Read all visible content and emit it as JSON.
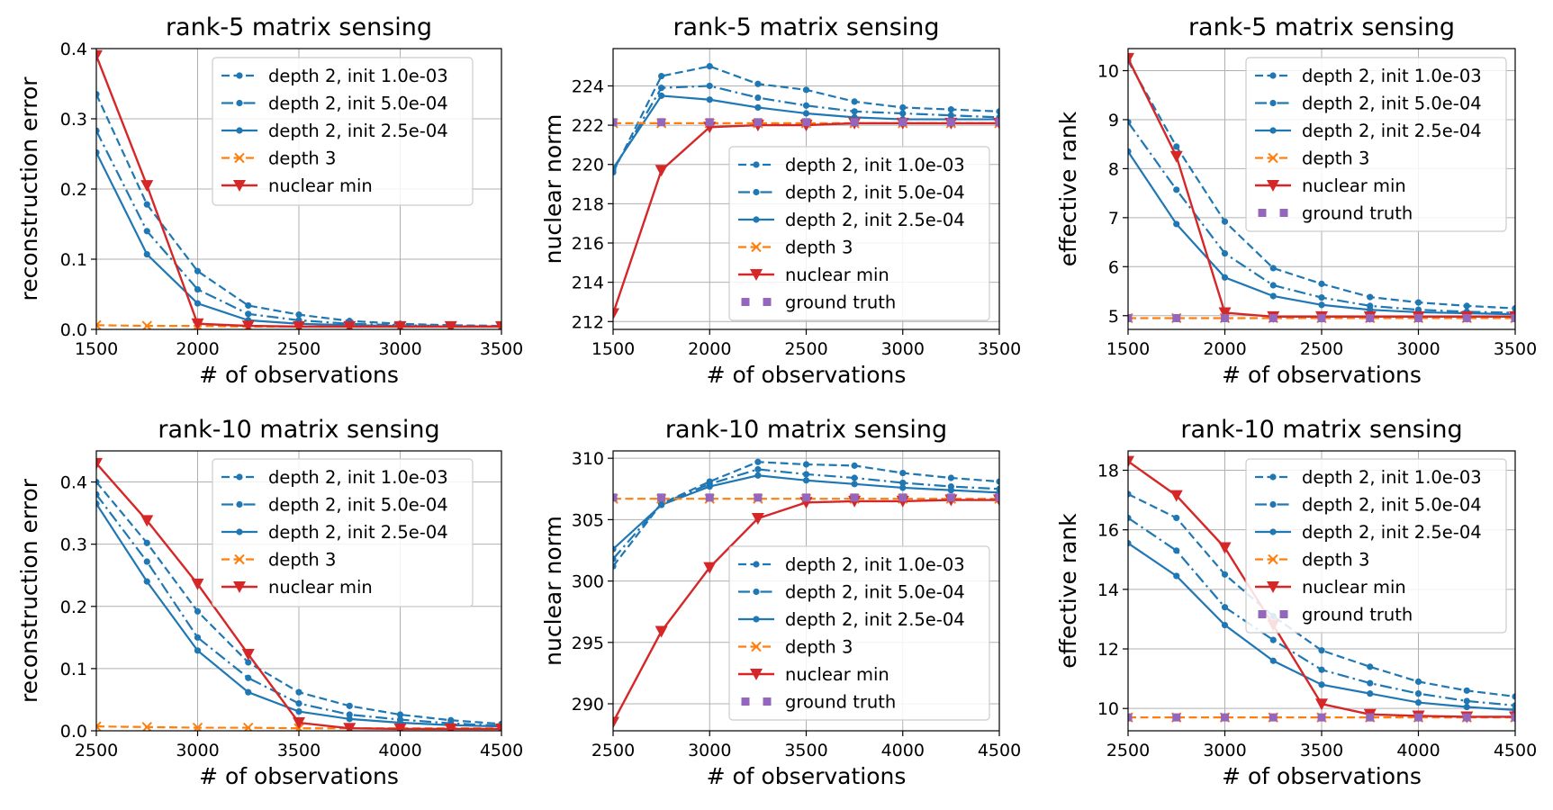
{
  "figure": {
    "colors": {
      "blue": "#1f77b4",
      "orange": "#ff7f0e",
      "red": "#d62728",
      "purple": "#9467bd"
    }
  },
  "chart_data": [
    {
      "type": "line",
      "title": "rank-5 matrix sensing",
      "xlabel": "# of observations",
      "ylabel": "reconstruction error",
      "xlim": [
        1500,
        3500
      ],
      "ylim": [
        0,
        0.4
      ],
      "xticks": [
        1500,
        2000,
        2500,
        3000,
        3500
      ],
      "xtick_labels": [
        "1500",
        "2000",
        "2500",
        "3000",
        "3500"
      ],
      "yticks": [
        0,
        0.1,
        0.2,
        0.3,
        0.4
      ],
      "ytick_labels": [
        "0.0",
        "0.1",
        "0.2",
        "0.3",
        "0.4"
      ],
      "legend_position": "top-right",
      "x": [
        1500,
        1750,
        2000,
        2250,
        2500,
        2750,
        3000,
        3250,
        3500
      ],
      "series": [
        {
          "name": "depth 2, init 1.0e-03",
          "style": "dashed-dot-marker",
          "color": "blue",
          "values": [
            0.335,
            0.178,
            0.083,
            0.034,
            0.021,
            0.012,
            0.008,
            0.006,
            0.005
          ]
        },
        {
          "name": "depth 2, init 5.0e-04",
          "style": "dashdot-dot-marker",
          "color": "blue",
          "values": [
            0.283,
            0.14,
            0.057,
            0.022,
            0.013,
            0.008,
            0.006,
            0.005,
            0.004
          ]
        },
        {
          "name": "depth 2, init 2.5e-04",
          "style": "solid-dot-marker",
          "color": "blue",
          "values": [
            0.252,
            0.107,
            0.037,
            0.013,
            0.008,
            0.006,
            0.005,
            0.004,
            0.004
          ]
        },
        {
          "name": "depth 3",
          "style": "dashed-x-marker",
          "color": "orange",
          "values": [
            0.006,
            0.005,
            0.005,
            0.004,
            0.004,
            0.004,
            0.004,
            0.004,
            0.004
          ]
        },
        {
          "name": "nuclear min",
          "style": "solid-triangle-marker",
          "color": "red",
          "values": [
            0.39,
            0.205,
            0.008,
            0.005,
            0.004,
            0.004,
            0.004,
            0.004,
            0.004
          ]
        }
      ]
    },
    {
      "type": "line",
      "title": "rank-5 matrix sensing",
      "xlabel": "# of observations",
      "ylabel": "nuclear norm",
      "xlim": [
        1500,
        3500
      ],
      "ylim": [
        211.6,
        225.9
      ],
      "xticks": [
        1500,
        2000,
        2500,
        3000,
        3500
      ],
      "xtick_labels": [
        "1500",
        "2000",
        "2500",
        "3000",
        "3500"
      ],
      "yticks": [
        212,
        214,
        216,
        218,
        220,
        222,
        224
      ],
      "ytick_labels": [
        "212",
        "214",
        "216",
        "218",
        "220",
        "222",
        "224"
      ],
      "legend_position": "center-right",
      "x": [
        1500,
        1750,
        2000,
        2250,
        2500,
        2750,
        3000,
        3250,
        3500
      ],
      "series": [
        {
          "name": "depth 2, init 1.0e-03",
          "style": "dashed-dot-marker",
          "color": "blue",
          "values": [
            219.6,
            224.5,
            225.0,
            224.1,
            223.8,
            223.2,
            222.9,
            222.8,
            222.7
          ]
        },
        {
          "name": "depth 2, init 5.0e-04",
          "style": "dashdot-dot-marker",
          "color": "blue",
          "values": [
            219.7,
            223.9,
            224.0,
            223.4,
            223.0,
            222.7,
            222.6,
            222.5,
            222.4
          ]
        },
        {
          "name": "depth 2, init 2.5e-04",
          "style": "solid-dot-marker",
          "color": "blue",
          "values": [
            219.8,
            223.5,
            223.3,
            222.9,
            222.6,
            222.4,
            222.3,
            222.3,
            222.3
          ]
        },
        {
          "name": "depth 3",
          "style": "dashed-x-marker",
          "color": "orange",
          "values": [
            222.1,
            222.1,
            222.1,
            222.1,
            222.1,
            222.1,
            222.1,
            222.1,
            222.1
          ]
        },
        {
          "name": "nuclear min",
          "style": "solid-triangle-marker",
          "color": "red",
          "values": [
            212.4,
            219.7,
            221.9,
            222.0,
            222.0,
            222.1,
            222.1,
            222.1,
            222.1
          ]
        },
        {
          "name": "ground truth",
          "style": "dotted-square-marker",
          "color": "purple",
          "values": [
            222.15,
            222.15,
            222.15,
            222.15,
            222.15,
            222.15,
            222.15,
            222.15,
            222.15
          ]
        }
      ]
    },
    {
      "type": "line",
      "title": "rank-5 matrix sensing",
      "xlabel": "# of observations",
      "ylabel": "effective rank",
      "xlim": [
        1500,
        3500
      ],
      "ylim": [
        4.72,
        10.45
      ],
      "xticks": [
        1500,
        2000,
        2500,
        3000,
        3500
      ],
      "xtick_labels": [
        "1500",
        "2000",
        "2500",
        "3000",
        "3500"
      ],
      "yticks": [
        5,
        6,
        7,
        8,
        9,
        10
      ],
      "ytick_labels": [
        "5",
        "6",
        "7",
        "8",
        "9",
        "10"
      ],
      "legend_position": "top-right",
      "x": [
        1500,
        1750,
        2000,
        2250,
        2500,
        2750,
        3000,
        3250,
        3500
      ],
      "series": [
        {
          "name": "depth 2, init 1.0e-03",
          "style": "dashed-dot-marker",
          "color": "blue",
          "values": [
            10.2,
            8.45,
            6.92,
            5.97,
            5.65,
            5.38,
            5.27,
            5.2,
            5.15
          ]
        },
        {
          "name": "depth 2, init 5.0e-04",
          "style": "dashdot-dot-marker",
          "color": "blue",
          "values": [
            8.95,
            7.57,
            6.27,
            5.62,
            5.37,
            5.2,
            5.12,
            5.08,
            5.06
          ]
        },
        {
          "name": "depth 2, init 2.5e-04",
          "style": "solid-dot-marker",
          "color": "blue",
          "values": [
            8.35,
            6.87,
            5.78,
            5.4,
            5.22,
            5.12,
            5.07,
            5.05,
            5.03
          ]
        },
        {
          "name": "depth 3",
          "style": "dashed-x-marker",
          "color": "orange",
          "values": [
            4.95,
            4.95,
            4.95,
            4.95,
            4.95,
            4.95,
            4.95,
            4.95,
            4.95
          ]
        },
        {
          "name": "nuclear min",
          "style": "solid-triangle-marker",
          "color": "red",
          "values": [
            10.25,
            8.25,
            5.06,
            4.98,
            4.98,
            4.98,
            4.98,
            4.98,
            4.98
          ]
        },
        {
          "name": "ground truth",
          "style": "dotted-square-marker",
          "color": "purple",
          "values": [
            4.95,
            4.95,
            4.95,
            4.95,
            4.95,
            4.95,
            4.95,
            4.95,
            4.95
          ]
        }
      ]
    },
    {
      "type": "line",
      "title": "rank-10 matrix sensing",
      "xlabel": "# of observations",
      "ylabel": "reconstruction error",
      "xlim": [
        2500,
        4500
      ],
      "ylim": [
        0,
        0.45
      ],
      "xticks": [
        2500,
        3000,
        3500,
        4000,
        4500
      ],
      "xtick_labels": [
        "2500",
        "3000",
        "3500",
        "4000",
        "4500"
      ],
      "yticks": [
        0,
        0.1,
        0.2,
        0.3,
        0.4
      ],
      "ytick_labels": [
        "0.0",
        "0.1",
        "0.2",
        "0.3",
        "0.4"
      ],
      "legend_position": "top-right",
      "x": [
        2500,
        2750,
        3000,
        3250,
        3500,
        3750,
        4000,
        4250,
        4500
      ],
      "series": [
        {
          "name": "depth 2, init 1.0e-03",
          "style": "dashed-dot-marker",
          "color": "blue",
          "values": [
            0.4,
            0.302,
            0.192,
            0.11,
            0.062,
            0.04,
            0.026,
            0.017,
            0.011
          ]
        },
        {
          "name": "depth 2, init 5.0e-04",
          "style": "dashdot-dot-marker",
          "color": "blue",
          "values": [
            0.38,
            0.272,
            0.15,
            0.085,
            0.044,
            0.026,
            0.018,
            0.012,
            0.008
          ]
        },
        {
          "name": "depth 2, init 2.5e-04",
          "style": "solid-dot-marker",
          "color": "blue",
          "values": [
            0.365,
            0.24,
            0.129,
            0.062,
            0.031,
            0.019,
            0.013,
            0.009,
            0.007
          ]
        },
        {
          "name": "depth 3",
          "style": "dashed-x-marker",
          "color": "orange",
          "values": [
            0.007,
            0.006,
            0.005,
            0.005,
            0.004,
            0.004,
            0.004,
            0.004,
            0.004
          ]
        },
        {
          "name": "nuclear min",
          "style": "solid-triangle-marker",
          "color": "red",
          "values": [
            0.43,
            0.338,
            0.236,
            0.123,
            0.013,
            0.004,
            0.003,
            0.003,
            0.003
          ]
        }
      ]
    },
    {
      "type": "line",
      "title": "rank-10 matrix sensing",
      "xlabel": "# of observations",
      "ylabel": "nuclear norm",
      "xlim": [
        2500,
        4500
      ],
      "ylim": [
        287.8,
        310.6
      ],
      "xticks": [
        2500,
        3000,
        3500,
        4000,
        4500
      ],
      "xtick_labels": [
        "2500",
        "3000",
        "3500",
        "4000",
        "4500"
      ],
      "yticks": [
        290,
        295,
        300,
        305,
        310
      ],
      "ytick_labels": [
        "290",
        "295",
        "300",
        "305",
        "310"
      ],
      "legend_position": "lower-right",
      "x": [
        2500,
        2750,
        3000,
        3250,
        3500,
        3750,
        4000,
        4250,
        4500
      ],
      "series": [
        {
          "name": "depth 2, init 1.0e-03",
          "style": "dashed-dot-marker",
          "color": "blue",
          "values": [
            301.2,
            306.3,
            308.1,
            309.7,
            309.5,
            309.4,
            308.8,
            308.4,
            308.1
          ]
        },
        {
          "name": "depth 2, init 5.0e-04",
          "style": "dashdot-dot-marker",
          "color": "blue",
          "values": [
            301.8,
            306.3,
            307.9,
            309.1,
            308.7,
            308.4,
            308.0,
            307.7,
            307.5
          ]
        },
        {
          "name": "depth 2, init 2.5e-04",
          "style": "solid-dot-marker",
          "color": "blue",
          "values": [
            302.6,
            306.2,
            307.7,
            308.6,
            308.2,
            307.9,
            307.6,
            307.4,
            307.2
          ]
        },
        {
          "name": "depth 3",
          "style": "dashed-x-marker",
          "color": "orange",
          "values": [
            306.7,
            306.7,
            306.7,
            306.7,
            306.7,
            306.7,
            306.7,
            306.7,
            306.7
          ]
        },
        {
          "name": "nuclear min",
          "style": "solid-triangle-marker",
          "color": "red",
          "values": [
            288.5,
            295.9,
            301.1,
            305.1,
            306.4,
            306.5,
            306.5,
            306.6,
            306.6
          ]
        },
        {
          "name": "ground truth",
          "style": "dotted-square-marker",
          "color": "purple",
          "values": [
            306.8,
            306.8,
            306.8,
            306.8,
            306.8,
            306.8,
            306.8,
            306.8,
            306.8
          ]
        }
      ]
    },
    {
      "type": "line",
      "title": "rank-10 matrix sensing",
      "xlabel": "# of observations",
      "ylabel": "effective rank",
      "xlim": [
        2500,
        4500
      ],
      "ylim": [
        9.25,
        18.65
      ],
      "xticks": [
        2500,
        3000,
        3500,
        4000,
        4500
      ],
      "xtick_labels": [
        "2500",
        "3000",
        "3500",
        "4000",
        "4500"
      ],
      "yticks": [
        10,
        12,
        14,
        16,
        18
      ],
      "ytick_labels": [
        "10",
        "12",
        "14",
        "16",
        "18"
      ],
      "legend_position": "top-right",
      "x": [
        2500,
        2750,
        3000,
        3250,
        3500,
        3750,
        4000,
        4250,
        4500
      ],
      "series": [
        {
          "name": "depth 2, init 1.0e-03",
          "style": "dashed-dot-marker",
          "color": "blue",
          "values": [
            17.2,
            16.4,
            14.5,
            13.1,
            11.95,
            11.4,
            10.9,
            10.6,
            10.4
          ]
        },
        {
          "name": "depth 2, init 5.0e-04",
          "style": "dashdot-dot-marker",
          "color": "blue",
          "values": [
            16.4,
            15.3,
            13.4,
            12.3,
            11.3,
            10.85,
            10.5,
            10.25,
            10.1
          ]
        },
        {
          "name": "depth 2, init 2.5e-04",
          "style": "solid-dot-marker",
          "color": "blue",
          "values": [
            15.55,
            14.45,
            12.8,
            11.6,
            10.8,
            10.5,
            10.2,
            10.05,
            9.95
          ]
        },
        {
          "name": "depth 3",
          "style": "dashed-x-marker",
          "color": "orange",
          "values": [
            9.7,
            9.7,
            9.7,
            9.7,
            9.7,
            9.7,
            9.7,
            9.7,
            9.7
          ]
        },
        {
          "name": "nuclear min",
          "style": "solid-triangle-marker",
          "color": "red",
          "values": [
            18.3,
            17.15,
            15.4,
            12.8,
            10.15,
            9.8,
            9.75,
            9.72,
            9.72
          ]
        },
        {
          "name": "ground truth",
          "style": "dotted-square-marker",
          "color": "purple",
          "values": [
            9.7,
            9.7,
            9.7,
            9.7,
            9.7,
            9.7,
            9.7,
            9.7,
            9.7
          ]
        }
      ]
    }
  ]
}
